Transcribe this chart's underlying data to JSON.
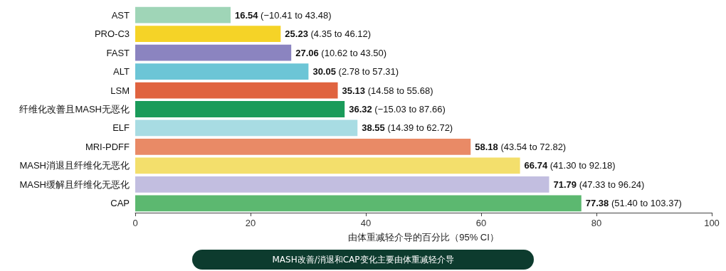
{
  "chart_data": {
    "type": "bar",
    "orientation": "horizontal",
    "categories": [
      "AST",
      "PRO-C3",
      "FAST",
      "ALT",
      "LSM",
      "纤维化改善且MASH无恶化",
      "ELF",
      "MRI-PDFF",
      "MASH消退且纤维化无恶化",
      "MASH缓解且纤维化无恶化",
      "CAP"
    ],
    "values": [
      16.54,
      25.23,
      27.06,
      30.05,
      35.13,
      36.32,
      38.55,
      58.18,
      66.74,
      71.79,
      77.38
    ],
    "value_labels": [
      "16.54 (−10.41 to 43.48)",
      "25.23 (4.35 to 46.12)",
      "27.06 (10.62 to 43.50)",
      "30.05 (2.78 to 57.31)",
      "35.13 (14.58 to 55.68)",
      "36.32 (−15.03 to 87.66)",
      "38.55 (14.39 to 62.72)",
      "58.18 (43.54 to 72.82)",
      "66.74 (41.30 to 92.18)",
      "71.79 (47.33 to 96.24)",
      "77.38 (51.40 to 103.37)"
    ],
    "colors": [
      "#9fd5b7",
      "#f5d327",
      "#8b84c0",
      "#6cc5d6",
      "#e0633f",
      "#1a9b5a",
      "#a8dce3",
      "#e98a66",
      "#f3df6c",
      "#c2bee0",
      "#5cb870"
    ],
    "xlim": [
      0,
      100
    ],
    "xticks": [
      0,
      20,
      40,
      60,
      80,
      100
    ],
    "xlabel": "由体重减轻介导的百分比（95% CI）",
    "grid": false,
    "annotations": [
      "MASH改善/消退和CAP变化主要由体重减轻介导"
    ]
  }
}
